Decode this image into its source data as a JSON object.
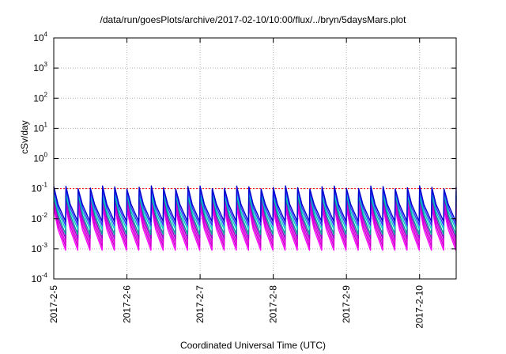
{
  "chart_data": {
    "type": "line",
    "title": "/data/run/goesPlots/archive/2017-02-10/10:00/flux/../bryn/5daysMars.plot",
    "xlabel": "Coordinated Universal Time (UTC)",
    "ylabel": "cSv/day",
    "xscale": "time",
    "yscale": "log",
    "xlim": [
      "2017-02-05 00:00",
      "2017-02-10 12:00"
    ],
    "ylim": [
      0.0001,
      10000
    ],
    "x_ticks": [
      "2017-2-5",
      "2017-2-6",
      "2017-2-7",
      "2017-2-8",
      "2017-2-9",
      "2017-2-10"
    ],
    "y_ticks": [
      {
        "base": "10",
        "exp": "-4"
      },
      {
        "base": "10",
        "exp": "-3"
      },
      {
        "base": "10",
        "exp": "-2"
      },
      {
        "base": "10",
        "exp": "-1"
      },
      {
        "base": "10",
        "exp": "0"
      },
      {
        "base": "10",
        "exp": "1"
      },
      {
        "base": "10",
        "exp": "2"
      },
      {
        "base": "10",
        "exp": "3"
      },
      {
        "base": "10",
        "exp": "4"
      }
    ],
    "grid": true,
    "legend": "none",
    "sawtooth_period_hours": 4,
    "reference_line": {
      "value": 0.1,
      "color": "#ff0000"
    },
    "series": [
      {
        "color": "#ff00ff",
        "peak": 0.022,
        "trough": 0.0009
      },
      {
        "color": "#cc00cc",
        "peak": 0.03,
        "trough": 0.0012
      },
      {
        "color": "#e000e0",
        "peak": 0.04,
        "trough": 0.0016
      },
      {
        "color": "#9900cc",
        "peak": 0.05,
        "trough": 0.0022
      },
      {
        "color": "#009999",
        "peak": 0.06,
        "trough": 0.003
      },
      {
        "color": "#00cccc",
        "peak": 0.07,
        "trough": 0.0045
      },
      {
        "color": "#3333ff",
        "peak": 0.09,
        "trough": 0.006
      },
      {
        "color": "#0000cc",
        "peak": 0.11,
        "trough": 0.008
      }
    ]
  }
}
